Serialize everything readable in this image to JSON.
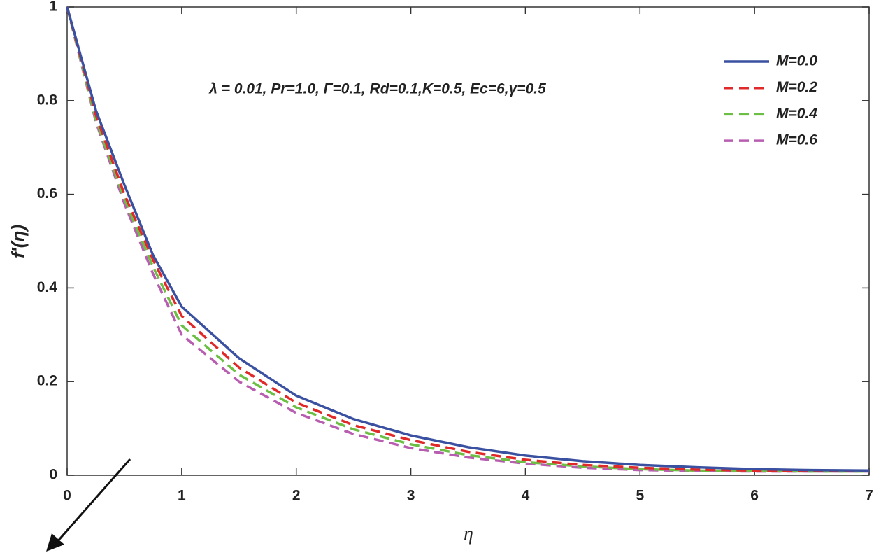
{
  "chart_data": {
    "type": "line",
    "annotation": "λ = 0.01, Pr=1.0, Γ=0.1, Rd=0.1,K=0.5, Ec=6,γ=0.5",
    "x_label": "η",
    "y_label": "f'(η)",
    "x": [
      0,
      0.25,
      0.5,
      0.75,
      1,
      1.5,
      2,
      2.5,
      3,
      3.5,
      4,
      4.5,
      5,
      5.5,
      6,
      6.5,
      7
    ],
    "series": [
      {
        "name": "M=0.0",
        "color": "#3a50a0",
        "dashed": false,
        "values": [
          1,
          0.78,
          0.62,
          0.47,
          0.36,
          0.25,
          0.17,
          0.12,
          0.085,
          0.06,
          0.042,
          0.03,
          0.022,
          0.017,
          0.013,
          0.011,
          0.01
        ]
      },
      {
        "name": "M=0.2",
        "color": "#e02a2a",
        "dashed": true,
        "values": [
          1,
          0.77,
          0.6,
          0.46,
          0.34,
          0.23,
          0.155,
          0.107,
          0.075,
          0.05,
          0.033,
          0.022,
          0.016,
          0.012,
          0.01,
          0.009,
          0.009
        ]
      },
      {
        "name": "M=0.4",
        "color": "#6cbf44",
        "dashed": true,
        "values": [
          1,
          0.76,
          0.59,
          0.445,
          0.32,
          0.215,
          0.145,
          0.098,
          0.066,
          0.043,
          0.028,
          0.019,
          0.013,
          0.01,
          0.009,
          0.008,
          0.008
        ]
      },
      {
        "name": "M=0.6",
        "color": "#b85eb0",
        "dashed": true,
        "values": [
          1,
          0.755,
          0.58,
          0.43,
          0.3,
          0.2,
          0.133,
          0.088,
          0.058,
          0.038,
          0.025,
          0.016,
          0.011,
          0.009,
          0.008,
          0.008,
          0.008
        ]
      }
    ],
    "xlim": [
      0,
      7
    ],
    "xticks": [
      0,
      1,
      2,
      3,
      4,
      5,
      6,
      7
    ],
    "ylim": [
      0,
      1
    ],
    "yticks": [
      0,
      0.2,
      0.4,
      0.6,
      0.8,
      1
    ],
    "grid": false,
    "legend": "upper right"
  }
}
